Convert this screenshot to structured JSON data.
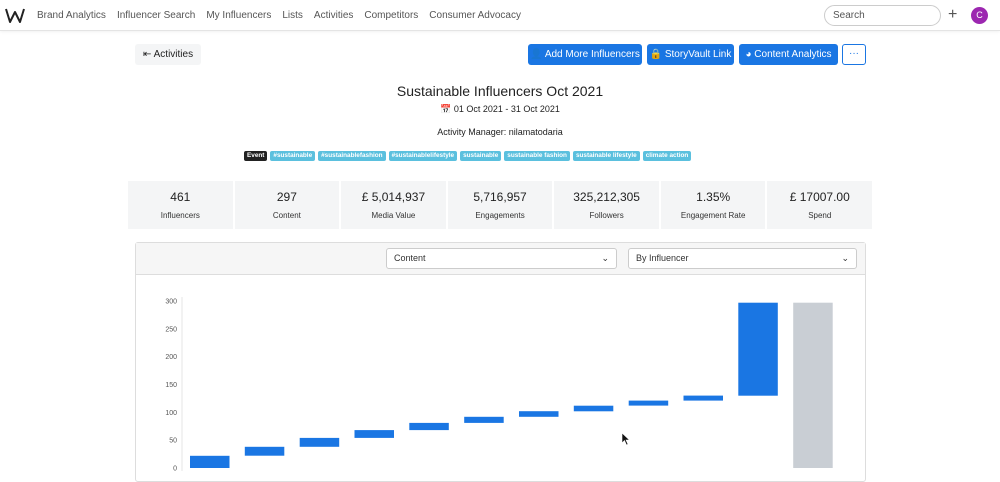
{
  "nav": {
    "links": [
      "Brand Analytics",
      "Influencer Search",
      "My Influencers",
      "Lists",
      "Activities",
      "Competitors",
      "Consumer Advocacy"
    ],
    "search_placeholder": "Search",
    "avatar_initial": "C"
  },
  "toolbar": {
    "back_label": "Activities",
    "add_influencers_label": "Add More Influencers",
    "storyvault_label": "StoryVault Link",
    "content_analytics_label": "Content Analytics",
    "more_label": "···"
  },
  "activity": {
    "title": "Sustainable Influencers Oct 2021",
    "date_range": "01 Oct 2021 - 31 Oct 2021",
    "manager_label": "Activity Manager:",
    "manager_name": "nilamatodaria",
    "event_tag": "Event",
    "tags": [
      "#sustainable",
      "#sustainablefashion",
      "#sustainablelifestyle",
      "sustainable",
      "sustainable fashion",
      "sustainable lifestyle",
      "climate action"
    ]
  },
  "stats": [
    {
      "value": "461",
      "label": "Influencers"
    },
    {
      "value": "297",
      "label": "Content"
    },
    {
      "value": "£ 5,014,937",
      "label": "Media Value"
    },
    {
      "value": "5,716,957",
      "label": "Engagements"
    },
    {
      "value": "325,212,305",
      "label": "Followers"
    },
    {
      "value": "1.35%",
      "label": "Engagement Rate"
    },
    {
      "value": "£ 17007.00",
      "label": "Spend"
    }
  ],
  "filters": {
    "metric_value": "Content",
    "grouping_value": "By Influencer"
  },
  "colors": {
    "primary": "#1a76e3",
    "tag": "#5bc0de",
    "total_bar": "#c9ced4"
  },
  "chart_data": {
    "type": "bar",
    "subtype": "waterfall",
    "y_ticks": [
      "0",
      "50",
      "100",
      "150",
      "200",
      "250",
      "300"
    ],
    "ylim": [
      0,
      300
    ],
    "series": [
      {
        "segments": [
          [
            0,
            22
          ],
          [
            22,
            38
          ],
          [
            38,
            54
          ],
          [
            54,
            68
          ],
          [
            68,
            81
          ],
          [
            81,
            92
          ],
          [
            92,
            102
          ],
          [
            102,
            112
          ],
          [
            112,
            121
          ],
          [
            121,
            130
          ],
          [
            130,
            297
          ]
        ]
      }
    ],
    "total": 297
  }
}
